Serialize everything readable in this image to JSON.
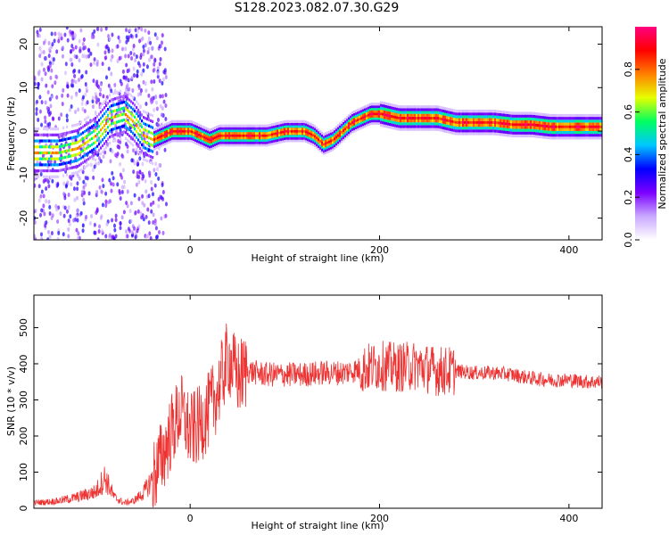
{
  "title": "S128.2023.082.07.30.G29",
  "chart_data": [
    {
      "type": "heatmap",
      "xlabel": "Height of straight line (km)",
      "ylabel": "Frequency (Hz)",
      "xlim": [
        -165,
        435
      ],
      "ylim": [
        -25,
        24
      ],
      "xticks": [
        0,
        200,
        400
      ],
      "yticks": [
        -20,
        -10,
        0,
        10,
        20
      ],
      "grid": false,
      "colorbar": {
        "label": "Normalized spectral amplitude",
        "range": [
          0,
          1
        ],
        "ticks": [
          0.0,
          0.2,
          0.4,
          0.6,
          0.8
        ],
        "colormap": [
          "#ffffff",
          "#c9a8ff",
          "#7a00ff",
          "#0000ff",
          "#00c8ff",
          "#00ff60",
          "#e6ff00",
          "#ff8000",
          "#ff0000",
          "#ff0080"
        ]
      },
      "ridge": {
        "x": [
          -165,
          -140,
          -120,
          -100,
          -85,
          -70,
          -60,
          -50,
          -40,
          -30,
          -20,
          -10,
          0,
          10,
          20,
          30,
          40,
          60,
          80,
          100,
          110,
          120,
          130,
          140,
          150,
          160,
          170,
          180,
          190,
          200,
          220,
          240,
          260,
          280,
          300,
          320,
          340,
          360,
          380,
          400,
          420,
          435
        ],
        "y": [
          -5,
          -5,
          -4,
          -1,
          3,
          4,
          2,
          -1,
          -2,
          -1,
          0,
          0,
          0,
          -1,
          -2,
          -1,
          -1,
          -1,
          -1,
          0,
          0,
          0,
          -1,
          -3,
          -2,
          0,
          2,
          3,
          4,
          4,
          3,
          3,
          3,
          2,
          2,
          2,
          1.5,
          1.5,
          1,
          1,
          1,
          1
        ]
      }
    },
    {
      "type": "line",
      "xlabel": "Height of straight line (km)",
      "ylabel": "SNR (10 * v/v)",
      "xlim": [
        -165,
        435
      ],
      "ylim": [
        0,
        590
      ],
      "xticks": [
        0,
        200,
        400
      ],
      "yticks": [
        0,
        100,
        200,
        300,
        400,
        500
      ],
      "grid": false,
      "series": [
        {
          "color": "#ee3333",
          "x": [
            -165,
            -140,
            -120,
            -100,
            -90,
            -80,
            -70,
            -60,
            -50,
            -40,
            -30,
            -20,
            -10,
            0,
            10,
            20,
            30,
            40,
            50,
            60,
            80,
            100,
            120,
            140,
            160,
            180,
            200,
            220,
            240,
            260,
            280,
            300,
            320,
            340,
            360,
            380,
            400,
            420,
            435
          ],
          "y": [
            15,
            20,
            30,
            45,
            85,
            30,
            15,
            20,
            40,
            80,
            140,
            210,
            270,
            210,
            230,
            270,
            330,
            420,
            360,
            380,
            370,
            370,
            370,
            375,
            375,
            385,
            395,
            390,
            395,
            380,
            380,
            375,
            375,
            370,
            360,
            355,
            355,
            350,
            350
          ]
        }
      ]
    }
  ]
}
